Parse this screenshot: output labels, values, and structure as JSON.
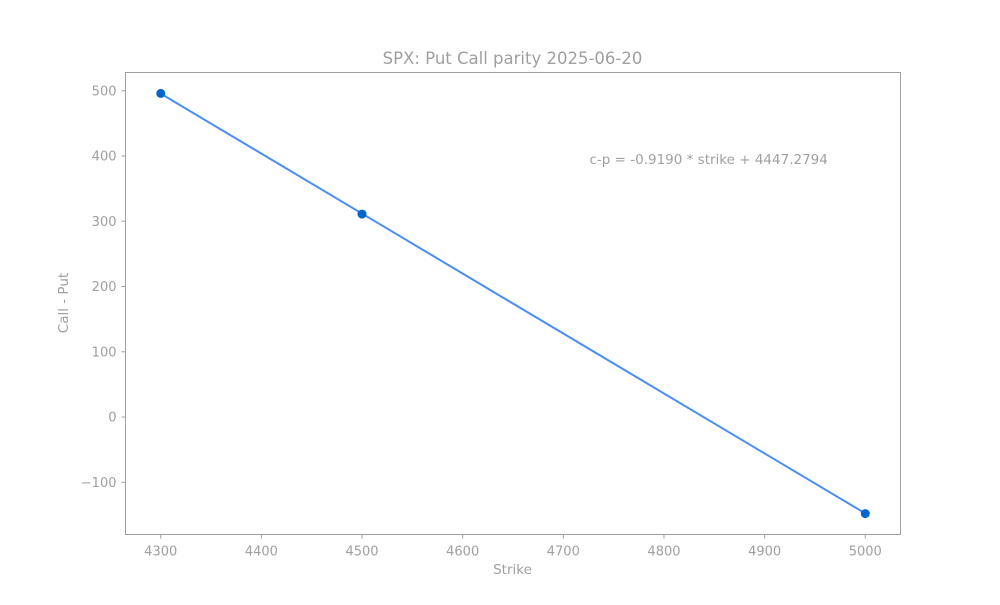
{
  "chart_data": {
    "type": "line",
    "title": "SPX: Put Call parity 2025-06-20",
    "xlabel": "Strike",
    "ylabel": "Call - Put",
    "xlim": [
      4265,
      5035
    ],
    "ylim": [
      -180,
      528
    ],
    "x_ticks": [
      4300,
      4400,
      4500,
      4600,
      4700,
      4800,
      4900,
      5000
    ],
    "x_tick_labels": [
      "4300",
      "4400",
      "4500",
      "4600",
      "4700",
      "4800",
      "4900",
      "5000"
    ],
    "y_ticks": [
      -100,
      0,
      100,
      200,
      300,
      400,
      500
    ],
    "y_tick_labels": [
      "−100",
      "0",
      "100",
      "200",
      "300",
      "400",
      "500"
    ],
    "grid": false,
    "series": [
      {
        "kind": "scatter",
        "color": "#0066cc",
        "x": [
          4300,
          4500,
          5000
        ],
        "y": [
          496,
          311,
          -148
        ]
      },
      {
        "kind": "line",
        "color": "#4a8ef5",
        "x": [
          4300,
          5000
        ],
        "y": [
          495.6,
          -147.7
        ]
      }
    ],
    "annotation": {
      "text": "c-p = -0.9190 * strike + 4447.2794",
      "x": 4726,
      "y": 388
    },
    "colors": {
      "text": "#a0a0a0",
      "frame": "#a0a0a0"
    }
  }
}
